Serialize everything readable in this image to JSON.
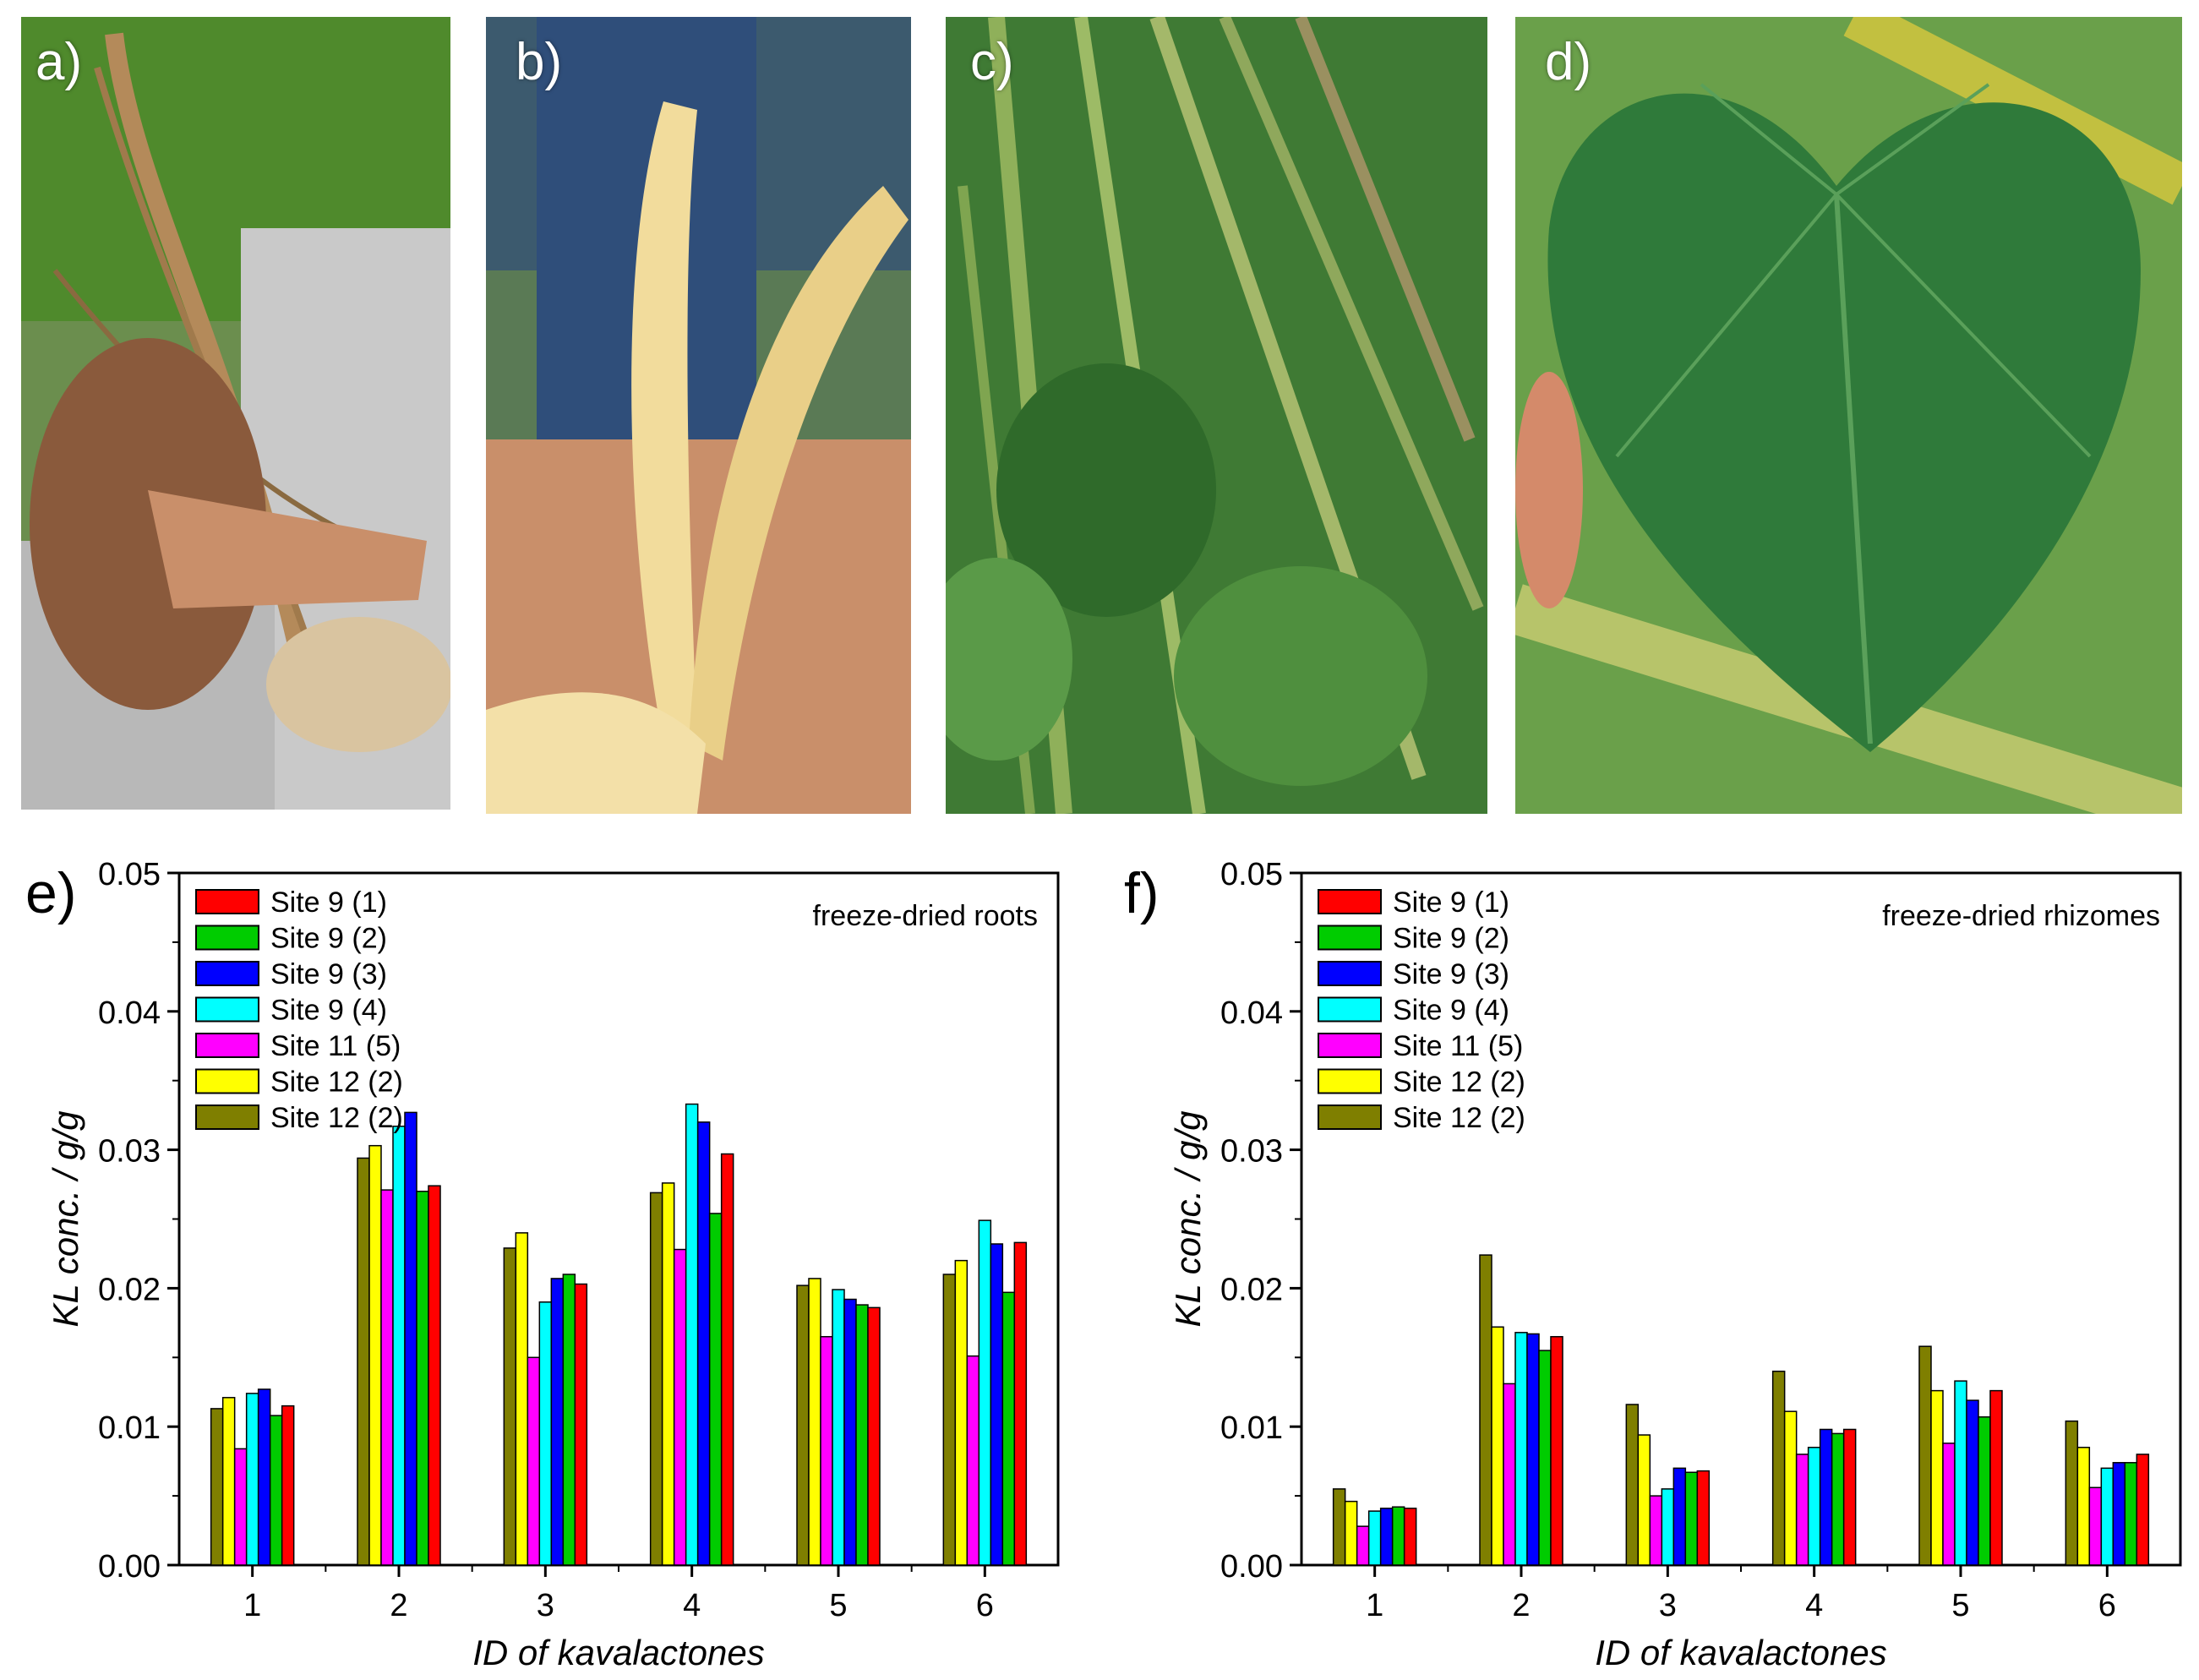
{
  "photos": [
    {
      "label": "a)",
      "subject": "root-photo"
    },
    {
      "label": "b)",
      "subject": "split-root-photo"
    },
    {
      "label": "c)",
      "subject": "stems-photo"
    },
    {
      "label": "d)",
      "subject": "leaf-photo"
    }
  ],
  "colors": {
    "site9_1": "#ff0000",
    "site9_2": "#00cc00",
    "site9_3": "#0000ff",
    "site9_4": "#00ffff",
    "site11_5": "#ff00ff",
    "site12_2a": "#ffff00",
    "site12_2b": "#7f7f00"
  },
  "chart_data": [
    {
      "panel": "e)",
      "type": "bar",
      "annotation": "freeze-dried roots",
      "xlabel": "ID of kavalactones",
      "ylabel": "KL conc. / g/g",
      "ylim": [
        0,
        0.05
      ],
      "yticks": [
        "0.00",
        "0.01",
        "0.02",
        "0.03",
        "0.04",
        "0.05"
      ],
      "categories": [
        "1",
        "2",
        "3",
        "4",
        "5",
        "6"
      ],
      "legend": [
        "Site 9 (1)",
        "Site 9 (2)",
        "Site 9 (3)",
        "Site 9 (4)",
        "Site 11 (5)",
        "Site 12 (2)",
        "Site 12 (2)"
      ],
      "bar_order": [
        "Site 12 (2) olive",
        "Site 12 (2) yellow",
        "Site 11 (5)",
        "Site 9 (4)",
        "Site 9 (3)",
        "Site 9 (2)",
        "Site 9 (1)"
      ],
      "series": [
        {
          "name": "Site 12 (2)",
          "color": "#7f7f00",
          "values": [
            0.0113,
            0.0294,
            0.0229,
            0.0269,
            0.0202,
            0.021
          ]
        },
        {
          "name": "Site 12 (2)",
          "color": "#ffff00",
          "values": [
            0.0121,
            0.0303,
            0.024,
            0.0276,
            0.0207,
            0.022
          ]
        },
        {
          "name": "Site 11 (5)",
          "color": "#ff00ff",
          "values": [
            0.0084,
            0.0271,
            0.015,
            0.0228,
            0.0165,
            0.0151
          ]
        },
        {
          "name": "Site 9 (4)",
          "color": "#00ffff",
          "values": [
            0.0124,
            0.0317,
            0.019,
            0.0333,
            0.0199,
            0.0249
          ]
        },
        {
          "name": "Site 9 (3)",
          "color": "#0000ff",
          "values": [
            0.0127,
            0.0327,
            0.0207,
            0.032,
            0.0192,
            0.0232
          ]
        },
        {
          "name": "Site 9 (2)",
          "color": "#00cc00",
          "values": [
            0.0108,
            0.027,
            0.021,
            0.0254,
            0.0188,
            0.0197
          ]
        },
        {
          "name": "Site 9 (1)",
          "color": "#ff0000",
          "values": [
            0.0115,
            0.0274,
            0.0203,
            0.0297,
            0.0186,
            0.0233
          ]
        }
      ]
    },
    {
      "panel": "f)",
      "type": "bar",
      "annotation": "freeze-dried rhizomes",
      "xlabel": "ID of kavalactones",
      "ylabel": "KL conc. / g/g",
      "ylim": [
        0,
        0.05
      ],
      "yticks": [
        "0.00",
        "0.01",
        "0.02",
        "0.03",
        "0.04",
        "0.05"
      ],
      "categories": [
        "1",
        "2",
        "3",
        "4",
        "5",
        "6"
      ],
      "legend": [
        "Site 9 (1)",
        "Site 9 (2)",
        "Site 9 (3)",
        "Site 9 (4)",
        "Site 11 (5)",
        "Site 12 (2)",
        "Site 12 (2)"
      ],
      "series": [
        {
          "name": "Site 12 (2)",
          "color": "#7f7f00",
          "values": [
            0.0055,
            0.0224,
            0.0116,
            0.014,
            0.0158,
            0.0104
          ]
        },
        {
          "name": "Site 12 (2)",
          "color": "#ffff00",
          "values": [
            0.0046,
            0.0172,
            0.0094,
            0.0111,
            0.0126,
            0.0085
          ]
        },
        {
          "name": "Site 11 (5)",
          "color": "#ff00ff",
          "values": [
            0.0028,
            0.0131,
            0.005,
            0.008,
            0.0088,
            0.0056
          ]
        },
        {
          "name": "Site 9 (4)",
          "color": "#00ffff",
          "values": [
            0.0039,
            0.0168,
            0.0055,
            0.0085,
            0.0133,
            0.007
          ]
        },
        {
          "name": "Site 9 (3)",
          "color": "#0000ff",
          "values": [
            0.0041,
            0.0167,
            0.007,
            0.0098,
            0.0119,
            0.0074
          ]
        },
        {
          "name": "Site 9 (2)",
          "color": "#00cc00",
          "values": [
            0.0042,
            0.0155,
            0.0067,
            0.0095,
            0.0107,
            0.0074
          ]
        },
        {
          "name": "Site 9 (1)",
          "color": "#ff0000",
          "values": [
            0.0041,
            0.0165,
            0.0068,
            0.0098,
            0.0126,
            0.008
          ]
        }
      ]
    }
  ]
}
